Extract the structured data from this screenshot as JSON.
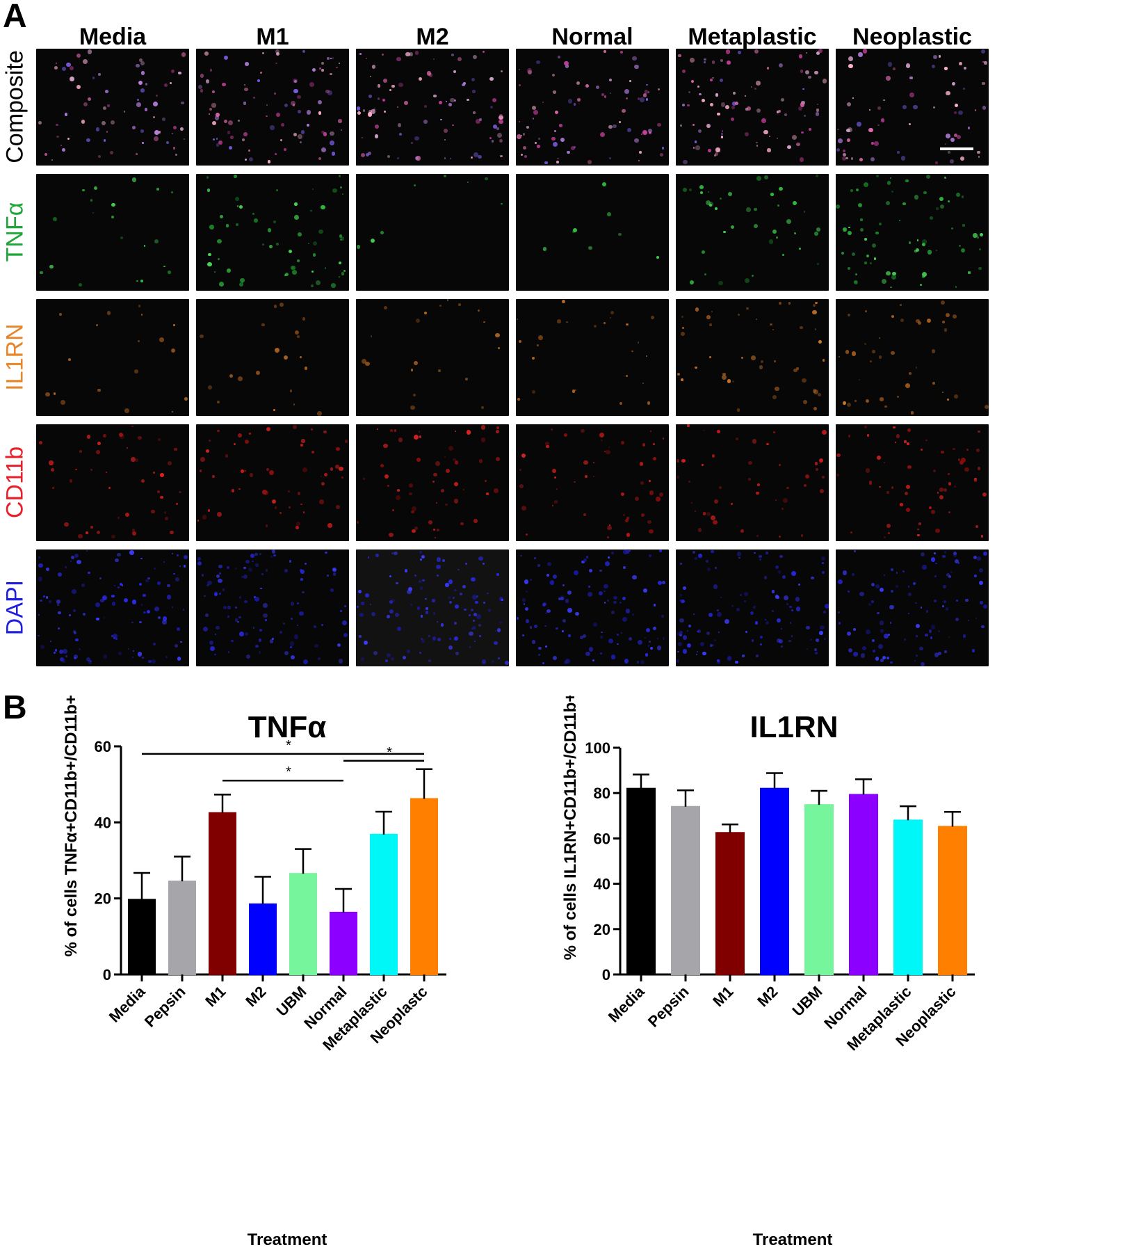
{
  "panel_a": {
    "letter": "A",
    "columns": [
      "Media",
      "M1",
      "M2",
      "Normal",
      "Metaplastic",
      "Neoplastic"
    ],
    "rows": [
      {
        "label": "Composite",
        "color": "#000000"
      },
      {
        "label": "TNFα",
        "color": "#1fa63a"
      },
      {
        "label": "IL1RN",
        "color": "#e8862a"
      },
      {
        "label": "CD11b",
        "color": "#e8202a"
      },
      {
        "label": "DAPI",
        "color": "#1f1fe0"
      }
    ]
  },
  "panel_b": {
    "letter": "B"
  },
  "chart_data": [
    {
      "type": "bar",
      "title": "TNFα",
      "xlabel": "Treatment",
      "ylabel": "% of cells TNFα+CD11b+/CD11b+",
      "ylim": [
        0,
        60
      ],
      "yticks": [
        0,
        20,
        40,
        60
      ],
      "categories": [
        "Media",
        "Pepsin",
        "M1",
        "M2",
        "UBM",
        "Normal",
        "Metaplastic",
        "Neoplastc"
      ],
      "values": [
        19.7,
        24.5,
        42.5,
        18.5,
        26.5,
        16.3,
        36.8,
        46.2
      ],
      "errors": [
        7.0,
        6.5,
        4.8,
        7.2,
        6.5,
        6.2,
        6.0,
        7.8
      ],
      "colors": [
        "#000000",
        "#a6a6aa",
        "#800000",
        "#0000ff",
        "#77f59c",
        "#8b00ff",
        "#00f7f7",
        "#ff7f00"
      ],
      "significance": [
        {
          "from": 0,
          "to": 7,
          "label": "*"
        },
        {
          "from": 5,
          "to": 7,
          "label": "*"
        },
        {
          "from": 2,
          "to": 5,
          "label": "*"
        }
      ]
    },
    {
      "type": "bar",
      "title": "IL1RN",
      "xlabel": "Treatment",
      "ylabel": "% of cells IL1RN+CD11b+/CD11b+",
      "ylim": [
        0,
        100
      ],
      "yticks": [
        0,
        20,
        40,
        60,
        80,
        100
      ],
      "categories": [
        "Media",
        "Pepsin",
        "M1",
        "M2",
        "UBM",
        "Normal",
        "Metaplastic",
        "Neoplastic"
      ],
      "values": [
        82,
        74,
        62.5,
        82,
        74.8,
        79.3,
        68,
        65.2
      ],
      "errors": [
        6.2,
        7.2,
        3.7,
        6.8,
        6.2,
        6.8,
        6.2,
        6.5
      ],
      "colors": [
        "#000000",
        "#a6a6aa",
        "#800000",
        "#0000ff",
        "#77f59c",
        "#8b00ff",
        "#00f7f7",
        "#ff7f00"
      ]
    }
  ]
}
